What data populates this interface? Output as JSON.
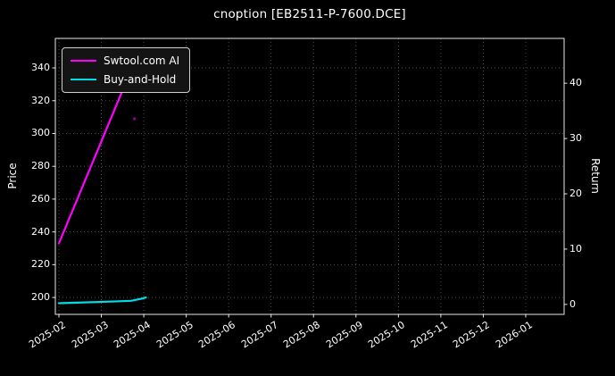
{
  "title": "cnoption [EB2511-P-7600.DCE]",
  "colors": {
    "background": "#000000",
    "foreground": "#ffffff",
    "grid": "#888888",
    "spine": "#e8e8e8",
    "ai_line": "#ff00ff",
    "buy_and_hold_line": "#00dde6"
  },
  "legend": {
    "items": [
      {
        "label": "Swtool.com AI",
        "color": "#ff00ff"
      },
      {
        "label": "Buy-and-Hold",
        "color": "#00dde6"
      }
    ]
  },
  "chart_data": {
    "type": "line",
    "title": "cnoption [EB2511-P-7600.DCE]",
    "grid": true,
    "grid_style": "dotted",
    "legend_position": "upper-left",
    "x_axis": {
      "tick_labels": [
        "2025-02",
        "2025-03",
        "2025-04",
        "2025-05",
        "2025-06",
        "2025-07",
        "2025-08",
        "2025-09",
        "2025-10",
        "2025-11",
        "2025-12",
        "2026-01"
      ],
      "unit": "month-index-from-2025-02",
      "range": [
        -0.084,
        11.905
      ]
    },
    "left_axis": {
      "label": "Price",
      "ticks": [
        200,
        220,
        240,
        260,
        280,
        300,
        320,
        340
      ],
      "range": [
        189.7,
        358.0
      ]
    },
    "right_axis": {
      "label": "Return",
      "ticks": [
        0,
        10,
        20,
        30,
        40
      ],
      "range": [
        -1.8,
        48.1
      ]
    },
    "series": [
      {
        "name": "Swtool.com AI",
        "color": "#ff00ff",
        "axis": "left",
        "points": [
          [
            0,
            233
          ],
          [
            0.9,
            289
          ],
          [
            1.8,
            345
          ]
        ]
      },
      {
        "name": "Buy-and-Hold",
        "color": "#00dde6",
        "axis": "left",
        "points": [
          [
            0,
            196.5
          ],
          [
            0.6,
            197
          ],
          [
            1.2,
            197.5
          ],
          [
            1.7,
            198
          ],
          [
            1.95,
            199.3
          ],
          [
            2.05,
            200
          ]
        ]
      }
    ],
    "markers": [
      {
        "x": 1.78,
        "value": 309,
        "color": "#ff00ff",
        "note": "faint dot near 2025-03 end"
      }
    ]
  }
}
